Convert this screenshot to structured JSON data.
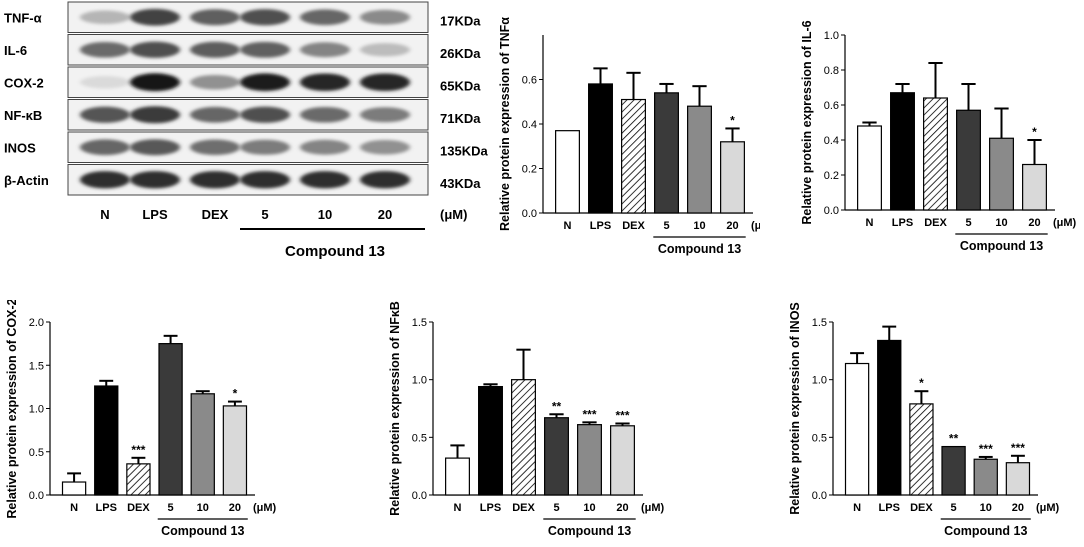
{
  "western_blot": {
    "bands": [
      {
        "label": "TNF-α",
        "size": "17KDa"
      },
      {
        "label": "IL-6",
        "size": "26KDa"
      },
      {
        "label": "COX-2",
        "size": "65KDa"
      },
      {
        "label": "NF-κB",
        "size": "71KDa"
      },
      {
        "label": "INOS",
        "size": "135KDa"
      },
      {
        "label": "β-Actin",
        "size": "43KDa"
      }
    ],
    "lanes": [
      "N",
      "LPS",
      "DEX",
      "5",
      "10",
      "20"
    ],
    "unit": "(μM)",
    "group_label": "Compound 13",
    "intensity": [
      [
        0.25,
        0.78,
        0.65,
        0.72,
        0.62,
        0.45
      ],
      [
        0.6,
        0.72,
        0.66,
        0.64,
        0.48,
        0.22
      ],
      [
        0.08,
        0.98,
        0.42,
        0.95,
        0.92,
        0.92
      ],
      [
        0.7,
        0.82,
        0.62,
        0.72,
        0.6,
        0.52
      ],
      [
        0.62,
        0.68,
        0.58,
        0.52,
        0.48,
        0.42
      ],
      [
        0.88,
        0.88,
        0.88,
        0.88,
        0.88,
        0.88
      ]
    ]
  },
  "colors": {
    "N": "#ffffff",
    "LPS": "#000000",
    "DEX": "hatch",
    "c5": "#3a3a3a",
    "c10": "#8a8a8a",
    "c20": "#d9d9d9"
  },
  "chart_data": [
    {
      "type": "bar",
      "categories": [
        "N",
        "LPS",
        "DEX",
        "5",
        "10",
        "20"
      ],
      "values": [
        0.37,
        0.58,
        0.51,
        0.54,
        0.48,
        0.32
      ],
      "errors": [
        0.0,
        0.07,
        0.12,
        0.04,
        0.09,
        0.06
      ],
      "significance": [
        "",
        "",
        "",
        "",
        "",
        "*"
      ],
      "ylabel": "Relative protein expression of TNFα",
      "ylim": [
        0,
        0.8
      ],
      "yticks": [
        "0.0",
        "0.2",
        "0.4",
        "0.6"
      ],
      "x_unit": "(μM)",
      "group_label": "Compound 13"
    },
    {
      "type": "bar",
      "categories": [
        "N",
        "LPS",
        "DEX",
        "5",
        "10",
        "20"
      ],
      "values": [
        0.48,
        0.67,
        0.64,
        0.57,
        0.41,
        0.26
      ],
      "errors": [
        0.02,
        0.05,
        0.2,
        0.15,
        0.17,
        0.14
      ],
      "significance": [
        "",
        "",
        "",
        "",
        "",
        "*"
      ],
      "ylabel": "Relative protein expression of IL-6",
      "ylim": [
        0,
        1.0
      ],
      "yticks": [
        "0.0",
        "0.2",
        "0.4",
        "0.6",
        "0.8",
        "1.0"
      ],
      "x_unit": "(μM)",
      "group_label": "Compound 13"
    },
    {
      "type": "bar",
      "categories": [
        "N",
        "LPS",
        "DEX",
        "5",
        "10",
        "20"
      ],
      "values": [
        0.15,
        1.26,
        0.36,
        1.75,
        1.17,
        1.03
      ],
      "errors": [
        0.1,
        0.06,
        0.07,
        0.09,
        0.03,
        0.05
      ],
      "significance": [
        "",
        "",
        "***",
        "",
        "",
        "*"
      ],
      "ylabel": "Relative protein expression of COX-2",
      "ylim": [
        0,
        2.0
      ],
      "yticks": [
        "0.0",
        "0.5",
        "1.0",
        "1.5",
        "2.0"
      ],
      "x_unit": "(μM)",
      "group_label": "Compound 13"
    },
    {
      "type": "bar",
      "categories": [
        "N",
        "LPS",
        "DEX",
        "5",
        "10",
        "20"
      ],
      "values": [
        0.32,
        0.94,
        1.0,
        0.67,
        0.61,
        0.6
      ],
      "errors": [
        0.11,
        0.02,
        0.26,
        0.03,
        0.02,
        0.02
      ],
      "significance": [
        "",
        "",
        "",
        "**",
        "***",
        "***"
      ],
      "ylabel": "Relative protein expression of NFκB",
      "ylim": [
        0,
        1.5
      ],
      "yticks": [
        "0.0",
        "0.5",
        "1.0",
        "1.5"
      ],
      "x_unit": "(μM)",
      "group_label": "Compound 13"
    },
    {
      "type": "bar",
      "categories": [
        "N",
        "LPS",
        "DEX",
        "5",
        "10",
        "20"
      ],
      "values": [
        1.14,
        1.34,
        0.79,
        0.42,
        0.31,
        0.28
      ],
      "errors": [
        0.09,
        0.12,
        0.11,
        0.0,
        0.02,
        0.06
      ],
      "significance": [
        "",
        "",
        "*",
        "**",
        "***",
        "***"
      ],
      "ylabel": "Relative protein expression of INOS",
      "ylim": [
        0,
        1.5
      ],
      "yticks": [
        "0.00",
        "0.50",
        "0.50",
        "1.00",
        "1.50"
      ],
      "yticks_display": [
        "0.0",
        "0.5",
        "1.0",
        "1.5"
      ],
      "x_unit": "(μM)",
      "group_label": "Compound 13"
    }
  ]
}
